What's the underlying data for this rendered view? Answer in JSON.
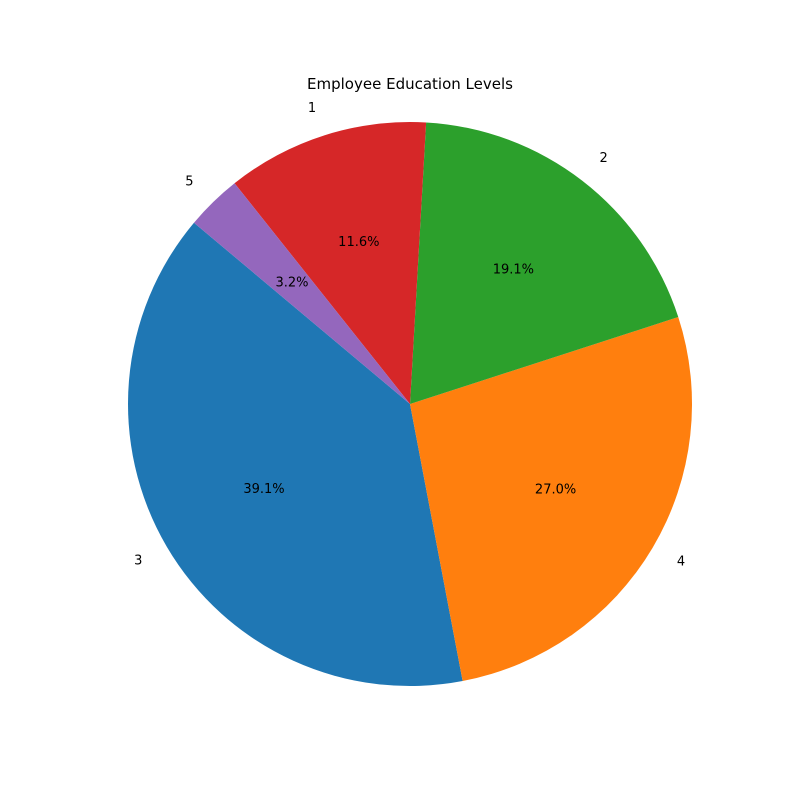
{
  "chart_data": {
    "type": "pie",
    "title": "Employee Education Levels",
    "labels": [
      "3",
      "4",
      "2",
      "1",
      "5"
    ],
    "values": [
      39.1,
      27.0,
      19.1,
      11.6,
      3.2
    ],
    "percent_labels": [
      "39.1%",
      "27.0%",
      "19.1%",
      "11.6%",
      "3.2%"
    ],
    "colors": [
      "#1f77b4",
      "#ff7f0e",
      "#2ca02c",
      "#d62728",
      "#9467bd"
    ],
    "start_angle_deg": 140,
    "direction": "counterclockwise"
  }
}
